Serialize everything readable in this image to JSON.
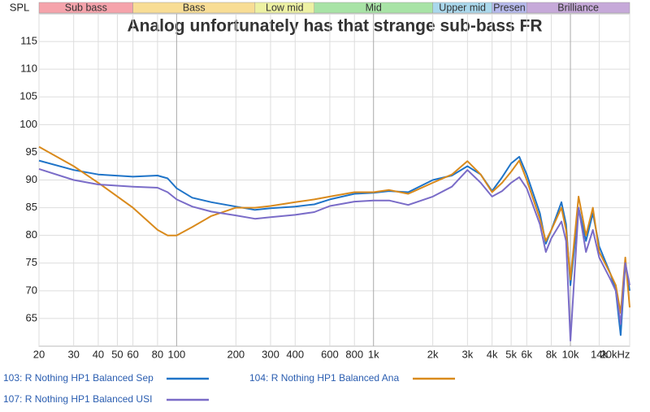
{
  "chart_data": {
    "type": "line",
    "title": "Analog unfortunately has that strange sub-bass FR",
    "y_label": "SPL",
    "x": [
      20,
      30,
      40,
      60,
      80,
      90,
      100,
      120,
      150,
      200,
      250,
      300,
      400,
      500,
      600,
      800,
      1000,
      1200,
      1500,
      2000,
      2500,
      3000,
      3500,
      4000,
      4500,
      5000,
      5500,
      6000,
      7000,
      7500,
      8000,
      9000,
      9500,
      10000,
      11000,
      12000,
      13000,
      14000,
      16000,
      17000,
      18000,
      19000,
      20000
    ],
    "series": [
      {
        "name": "103: R Nothing HP1 Balanced Sep",
        "color": "#1f74c8",
        "values": [
          93.5,
          91.8,
          91,
          90.6,
          90.8,
          90.3,
          88.5,
          86.8,
          86,
          85.2,
          84.6,
          84.9,
          85.2,
          85.6,
          86.5,
          87.5,
          87.7,
          88,
          87.8,
          90,
          90.8,
          92.5,
          91,
          88,
          90.5,
          93,
          94.2,
          91,
          84,
          78.5,
          81,
          86,
          82,
          71,
          85,
          79,
          84,
          78,
          73,
          70,
          62,
          75,
          70
        ]
      },
      {
        "name": "104: R Nothing HP1 Balanced Ana",
        "color": "#d98a1c",
        "values": [
          96,
          92.5,
          89.5,
          85,
          81,
          80,
          80,
          81.5,
          83.5,
          85,
          85,
          85.3,
          86,
          86.5,
          87,
          87.8,
          87.8,
          88.2,
          87.5,
          89.5,
          91,
          93.4,
          91,
          87.8,
          89.5,
          91.5,
          93.5,
          90,
          83,
          79,
          81,
          85,
          81,
          72,
          87,
          80,
          85,
          77,
          73,
          71,
          66,
          76,
          67
        ]
      },
      {
        "name": "107: R Nothing HP1 Balanced USI",
        "color": "#7a6cc8",
        "values": [
          92,
          90,
          89.2,
          88.8,
          88.6,
          87.8,
          86.5,
          85.2,
          84.3,
          83.6,
          83,
          83.3,
          83.7,
          84.2,
          85.3,
          86.1,
          86.3,
          86.3,
          85.5,
          87,
          88.8,
          91.8,
          89.5,
          87,
          88,
          89.5,
          90.5,
          88.5,
          82,
          77,
          79.5,
          82.5,
          79,
          61,
          85,
          77,
          81,
          76,
          72,
          70,
          64,
          75,
          71
        ]
      }
    ],
    "bands": [
      {
        "label": "Sub bass",
        "from": 20,
        "to": 60,
        "color": "#f5a3ab"
      },
      {
        "label": "Bass",
        "from": 60,
        "to": 250,
        "color": "#f8dd95"
      },
      {
        "label": "Low mid",
        "from": 250,
        "to": 500,
        "color": "#edf1a3"
      },
      {
        "label": "Mid",
        "from": 500,
        "to": 2000,
        "color": "#a8e3a6"
      },
      {
        "label": "Upper mid",
        "from": 2000,
        "to": 4000,
        "color": "#aad8ec"
      },
      {
        "label": "Presen",
        "from": 4000,
        "to": 6000,
        "color": "#b6b9ec"
      },
      {
        "label": "Brilliance",
        "from": 6000,
        "to": 20000,
        "color": "#c6a9d9"
      }
    ],
    "x_log": true,
    "grid": true,
    "xlim": [
      20,
      20000
    ],
    "ylim": [
      60,
      120
    ],
    "xticks": [
      20,
      30,
      40,
      50,
      60,
      80,
      {
        "value": 100,
        "label": "100"
      },
      200,
      300,
      400,
      600,
      800,
      {
        "value": 1000,
        "label": "1k"
      },
      {
        "value": 2000,
        "label": "2k"
      },
      {
        "value": 3000,
        "label": "3k"
      },
      {
        "value": 4000,
        "label": "4k"
      },
      {
        "value": 5000,
        "label": "5k"
      },
      {
        "value": 6000,
        "label": "6k"
      },
      {
        "value": 8000,
        "label": "8k"
      },
      {
        "value": 10000,
        "label": "10k"
      },
      {
        "value": 14000,
        "label": "14k"
      },
      {
        "value": 20000,
        "label": "20kHz"
      }
    ],
    "yticks": [
      65,
      70,
      75,
      80,
      85,
      90,
      95,
      100,
      105,
      110,
      115
    ]
  }
}
